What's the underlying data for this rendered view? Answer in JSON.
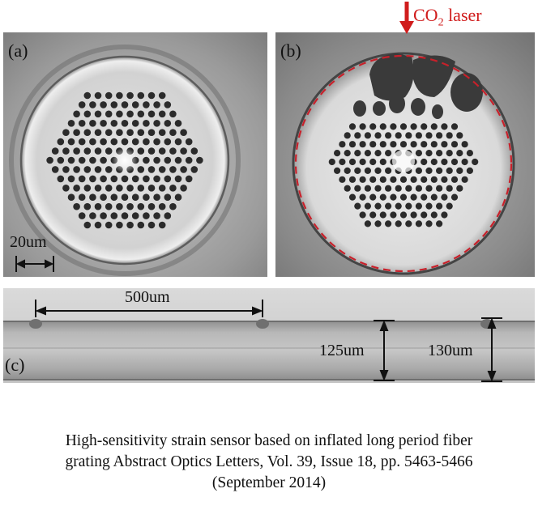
{
  "figure": {
    "panel_a": {
      "label": "(a)",
      "scale_bar_label": "20um"
    },
    "panel_b": {
      "label": "(b)",
      "laser": {
        "prefix": "CO",
        "subscript": "2",
        "suffix": " laser"
      }
    },
    "panel_c": {
      "label": "(c)",
      "period_label": "500um",
      "diameter_label_1": "125um",
      "diameter_label_2": "130um"
    }
  },
  "caption": {
    "line1": "High-sensitivity strain sensor based on inflated long period fiber",
    "line2": "grating Abstract Optics Letters, Vol. 39, Issue 18, pp. 5463-5466",
    "line3": "(September 2014)"
  },
  "colors": {
    "annotation_red": "#d01c1c",
    "dashed_circle": "#c8202a"
  }
}
